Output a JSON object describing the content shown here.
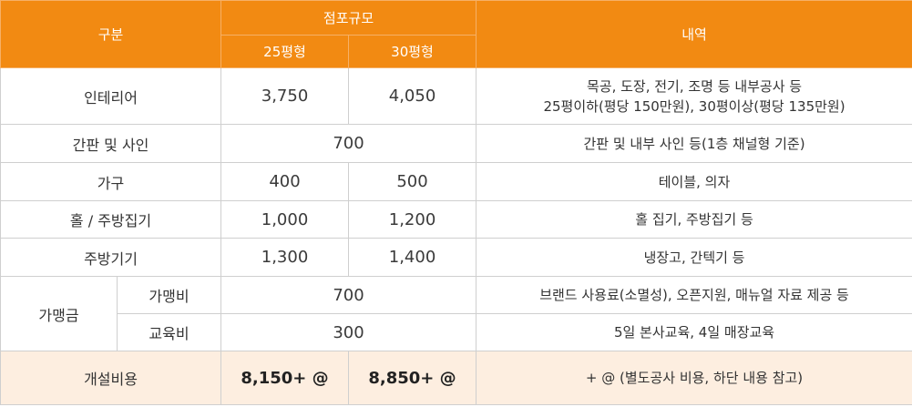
{
  "header": {
    "category": "구분",
    "store_size": "점포규모",
    "size_25": "25평형",
    "size_30": "30평형",
    "details": "내역"
  },
  "rows": {
    "interior": {
      "label": "인테리어",
      "v25": "3,750",
      "v30": "4,050",
      "desc_line1": "목공, 도장, 전기, 조명 등 내부공사 등",
      "desc_line2": "25평이하(평당 150만원), 30평이상(평당 135만원)"
    },
    "signage": {
      "label": "간판 및 사인",
      "value": "700",
      "desc": "간판 및 내부 사인 등(1층 채널형 기준)"
    },
    "furniture": {
      "label": "가구",
      "v25": "400",
      "v30": "500",
      "desc": "테이블, 의자"
    },
    "hall_kitchen": {
      "label": "홀 / 주방집기",
      "v25": "1,000",
      "v30": "1,200",
      "desc": "홀 집기, 주방집기 등"
    },
    "kitchen_equipment": {
      "label": "주방기기",
      "v25": "1,300",
      "v30": "1,400",
      "desc": "냉장고, 간텍기 등"
    },
    "franchise": {
      "label": "가맹금",
      "fee": {
        "label": "가맹비",
        "value": "700",
        "desc": "브랜드 사용료(소멸성), 오픈지원, 매뉴얼 자료 제공 등"
      },
      "training": {
        "label": "교육비",
        "value": "300",
        "desc": "5일 본사교육, 4일 매장교육"
      }
    },
    "total": {
      "label": "개설비용",
      "v25": "8,150+ @",
      "v30": "8,850+ @",
      "desc": "+ @ (별도공사 비용, 하단 내용  참고)"
    }
  },
  "colors": {
    "header_bg": "#f28a12",
    "total_bg": "#fdeee0",
    "border": "#cfcfcf"
  }
}
